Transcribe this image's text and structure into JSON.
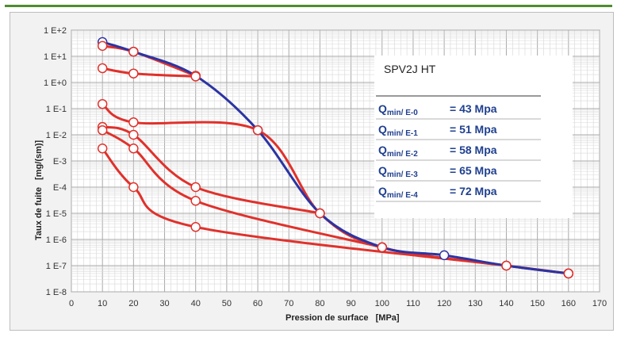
{
  "chart_data": {
    "type": "line",
    "xlabel": "Pression de surface",
    "xlabel_unit": "[MPa]",
    "ylabel": "Taux de fuite",
    "ylabel_unit": "[mg/(sm)]",
    "xlim": [
      0,
      170
    ],
    "ylim_exp": [
      -8,
      2
    ],
    "yscale": "log",
    "grid": true,
    "x_ticks": [
      "0",
      "10",
      "20",
      "30",
      "40",
      "50",
      "60",
      "70",
      "80",
      "90",
      "100",
      "110",
      "120",
      "130",
      "140",
      "150",
      "160",
      "170"
    ],
    "y_ticks": [
      "1 E+2",
      "1 E+1",
      "1 E+0",
      "1 E-1",
      "1 E-2",
      "E-3",
      "E-4",
      "1 E-5",
      "1 E-6",
      "1 E-7",
      "1 E-8"
    ],
    "series": [
      {
        "color": "#2b34a3",
        "values": [
          [
            10,
            35
          ],
          [
            20,
            15
          ],
          [
            40,
            1.8
          ],
          [
            60,
            0.015
          ],
          [
            80,
            1e-05
          ],
          [
            100,
            5e-07
          ],
          [
            120,
            2.5e-07
          ],
          [
            140,
            1e-07
          ],
          [
            160,
            5e-08
          ]
        ]
      },
      {
        "color": "#e0312b",
        "values": [
          [
            10,
            25
          ],
          [
            20,
            15
          ],
          [
            40,
            1.8
          ]
        ]
      },
      {
        "color": "#e0312b",
        "values": [
          [
            10,
            3.5
          ],
          [
            20,
            2.2
          ],
          [
            40,
            1.7
          ]
        ]
      },
      {
        "color": "#e0312b",
        "values": [
          [
            10,
            0.15
          ],
          [
            20,
            0.03
          ],
          [
            60,
            0.015
          ],
          [
            80,
            1e-05
          ],
          [
            100,
            5e-07
          ],
          [
            140,
            1e-07
          ],
          [
            160,
            5e-08
          ]
        ]
      },
      {
        "color": "#e0312b",
        "values": [
          [
            10,
            0.02
          ],
          [
            20,
            0.01
          ],
          [
            40,
            0.0001
          ],
          [
            80,
            1e-05
          ]
        ]
      },
      {
        "color": "#e0312b",
        "values": [
          [
            10,
            0.015
          ],
          [
            20,
            0.003
          ],
          [
            40,
            3e-05
          ],
          [
            100,
            5e-07
          ]
        ]
      },
      {
        "color": "#e0312b",
        "values": [
          [
            10,
            0.003
          ],
          [
            20,
            0.0001
          ],
          [
            40,
            3e-06
          ],
          [
            140,
            1e-07
          ],
          [
            160,
            5e-08
          ]
        ]
      }
    ],
    "legend": {
      "title": "SPV2J HT",
      "placement": "top-right",
      "entries": [
        {
          "q": "Q",
          "sub": "min/ E-0",
          "val": "= 43 Mpa"
        },
        {
          "q": "Q",
          "sub": "min/ E-1",
          "val": "= 51 Mpa"
        },
        {
          "q": "Q",
          "sub": "min/ E-2",
          "val": "= 58 Mpa"
        },
        {
          "q": "Q",
          "sub": "min/ E-3",
          "val": "= 65 Mpa"
        },
        {
          "q": "Q",
          "sub": "min/ E-4",
          "val": "= 72 Mpa"
        }
      ]
    }
  }
}
